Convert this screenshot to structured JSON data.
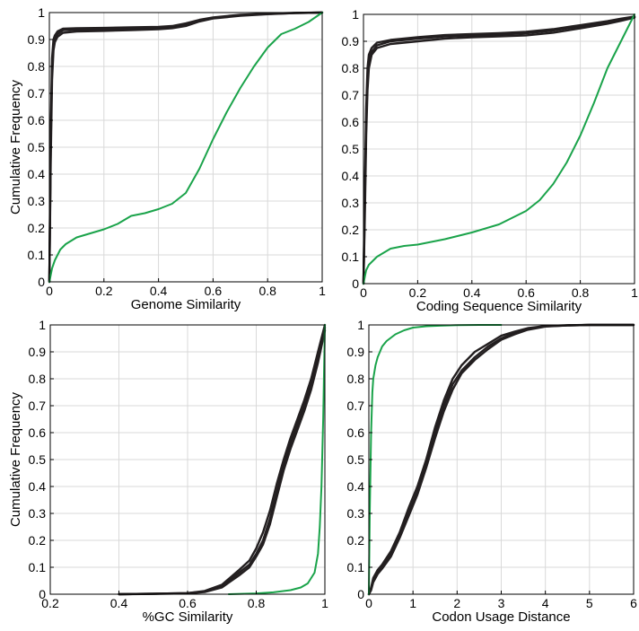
{
  "colors": {
    "black_series": "#231f20",
    "green_series": "#1aa34a",
    "grid": "#d9d9d9"
  },
  "chart_data": [
    {
      "type": "line",
      "xlabel": "Genome Similarity",
      "ylabel": "Cumulative Frequency",
      "xlim": [
        0,
        1
      ],
      "ylim": [
        0,
        1
      ],
      "xticks": [
        "0",
        "0.2",
        "0.4",
        "0.6",
        "0.8",
        "1"
      ],
      "yticks": [
        "0",
        "0.1",
        "0.2",
        "0.3",
        "0.4",
        "0.5",
        "0.6",
        "0.7",
        "0.8",
        "0.9",
        "1"
      ],
      "grid": true,
      "series": [
        {
          "color": "#231f20",
          "x": [
            0,
            0.005,
            0.01,
            0.015,
            0.02,
            0.03,
            0.05,
            0.1,
            0.2,
            0.3,
            0.4,
            0.45,
            0.5,
            0.55,
            0.6,
            0.7,
            0.8,
            0.9,
            1.0
          ],
          "y": [
            0,
            0.5,
            0.8,
            0.88,
            0.9,
            0.92,
            0.935,
            0.937,
            0.937,
            0.94,
            0.942,
            0.945,
            0.955,
            0.97,
            0.98,
            0.99,
            0.995,
            0.998,
            1.0
          ]
        },
        {
          "color": "#231f20",
          "x": [
            0,
            0.005,
            0.01,
            0.015,
            0.02,
            0.03,
            0.05,
            0.1,
            0.2,
            0.3,
            0.4,
            0.45,
            0.5,
            0.55,
            0.6,
            0.7,
            0.8,
            0.9,
            1.0
          ],
          "y": [
            0,
            0.45,
            0.75,
            0.86,
            0.89,
            0.91,
            0.925,
            0.93,
            0.932,
            0.935,
            0.938,
            0.942,
            0.95,
            0.967,
            0.978,
            0.988,
            0.994,
            0.998,
            1.0
          ]
        },
        {
          "color": "#231f20",
          "x": [
            0,
            0.005,
            0.01,
            0.015,
            0.02,
            0.03,
            0.05,
            0.1,
            0.2,
            0.3,
            0.4,
            0.45,
            0.5,
            0.55,
            0.6,
            0.7,
            0.8,
            0.9,
            1.0
          ],
          "y": [
            0,
            0.55,
            0.83,
            0.9,
            0.915,
            0.93,
            0.94,
            0.942,
            0.943,
            0.945,
            0.947,
            0.95,
            0.96,
            0.973,
            0.982,
            0.992,
            0.996,
            0.999,
            1.0
          ]
        },
        {
          "color": "#1aa34a",
          "x": [
            0,
            0.01,
            0.02,
            0.04,
            0.06,
            0.1,
            0.15,
            0.2,
            0.25,
            0.3,
            0.35,
            0.4,
            0.45,
            0.5,
            0.55,
            0.6,
            0.65,
            0.7,
            0.75,
            0.8,
            0.85,
            0.9,
            0.95,
            1.0
          ],
          "y": [
            0,
            0.05,
            0.08,
            0.12,
            0.14,
            0.165,
            0.18,
            0.195,
            0.215,
            0.245,
            0.255,
            0.27,
            0.29,
            0.33,
            0.42,
            0.53,
            0.63,
            0.72,
            0.8,
            0.87,
            0.92,
            0.94,
            0.965,
            1.0
          ]
        }
      ]
    },
    {
      "type": "line",
      "xlabel": "Coding Sequence Similarity",
      "ylabel": "",
      "xlim": [
        0,
        1
      ],
      "ylim": [
        0,
        1
      ],
      "xticks": [
        "0",
        "0.2",
        "0.4",
        "0.6",
        "0.8",
        "1"
      ],
      "yticks": [
        "0",
        "0.1",
        "0.2",
        "0.3",
        "0.4",
        "0.5",
        "0.6",
        "0.7",
        "0.8",
        "0.9",
        "1"
      ],
      "grid": true,
      "series": [
        {
          "color": "#231f20",
          "x": [
            0,
            0.005,
            0.01,
            0.015,
            0.02,
            0.03,
            0.05,
            0.1,
            0.2,
            0.3,
            0.4,
            0.5,
            0.6,
            0.7,
            0.8,
            0.9,
            0.95,
            1.0
          ],
          "y": [
            0,
            0.3,
            0.6,
            0.75,
            0.82,
            0.86,
            0.885,
            0.9,
            0.91,
            0.918,
            0.922,
            0.925,
            0.93,
            0.94,
            0.955,
            0.97,
            0.98,
            0.99
          ]
        },
        {
          "color": "#231f20",
          "x": [
            0,
            0.005,
            0.01,
            0.015,
            0.02,
            0.03,
            0.05,
            0.1,
            0.2,
            0.3,
            0.4,
            0.5,
            0.6,
            0.7,
            0.8,
            0.9,
            0.95,
            1.0
          ],
          "y": [
            0,
            0.35,
            0.65,
            0.8,
            0.85,
            0.875,
            0.895,
            0.905,
            0.915,
            0.923,
            0.927,
            0.93,
            0.935,
            0.945,
            0.96,
            0.975,
            0.984,
            0.992
          ]
        },
        {
          "color": "#231f20",
          "x": [
            0,
            0.005,
            0.01,
            0.015,
            0.02,
            0.03,
            0.05,
            0.1,
            0.2,
            0.3,
            0.4,
            0.5,
            0.6,
            0.7,
            0.8,
            0.9,
            0.95,
            1.0
          ],
          "y": [
            0,
            0.25,
            0.55,
            0.72,
            0.8,
            0.85,
            0.875,
            0.89,
            0.9,
            0.91,
            0.915,
            0.918,
            0.922,
            0.932,
            0.948,
            0.965,
            0.976,
            0.988
          ]
        },
        {
          "color": "#1aa34a",
          "x": [
            0,
            0.01,
            0.02,
            0.05,
            0.1,
            0.15,
            0.2,
            0.3,
            0.4,
            0.5,
            0.55,
            0.6,
            0.65,
            0.7,
            0.75,
            0.8,
            0.85,
            0.9,
            0.95,
            1.0
          ],
          "y": [
            0,
            0.05,
            0.07,
            0.1,
            0.13,
            0.14,
            0.145,
            0.165,
            0.19,
            0.22,
            0.245,
            0.27,
            0.31,
            0.37,
            0.45,
            0.55,
            0.67,
            0.8,
            0.9,
            1.0
          ]
        }
      ]
    },
    {
      "type": "line",
      "xlabel": "%GC Similarity",
      "ylabel": "Cumulative Frequency",
      "xlim": [
        0.2,
        1
      ],
      "ylim": [
        0,
        1
      ],
      "xticks": [
        "0.2",
        "0.4",
        "0.6",
        "0.8",
        "1"
      ],
      "yticks": [
        "0",
        "0.1",
        "0.2",
        "0.3",
        "0.4",
        "0.5",
        "0.6",
        "0.7",
        "0.8",
        "0.9",
        "1"
      ],
      "grid": true,
      "series": [
        {
          "color": "#231f20",
          "x": [
            0.4,
            0.5,
            0.6,
            0.65,
            0.7,
            0.75,
            0.78,
            0.8,
            0.82,
            0.84,
            0.86,
            0.88,
            0.9,
            0.92,
            0.94,
            0.96,
            0.98,
            1.0
          ],
          "y": [
            0,
            0.002,
            0.004,
            0.01,
            0.03,
            0.08,
            0.11,
            0.15,
            0.2,
            0.28,
            0.38,
            0.48,
            0.56,
            0.63,
            0.7,
            0.78,
            0.88,
            0.99
          ]
        },
        {
          "color": "#231f20",
          "x": [
            0.4,
            0.5,
            0.6,
            0.65,
            0.7,
            0.75,
            0.78,
            0.8,
            0.82,
            0.84,
            0.86,
            0.88,
            0.9,
            0.92,
            0.94,
            0.96,
            0.98,
            1.0
          ],
          "y": [
            0,
            0.002,
            0.004,
            0.012,
            0.035,
            0.09,
            0.125,
            0.17,
            0.23,
            0.31,
            0.41,
            0.5,
            0.58,
            0.65,
            0.72,
            0.8,
            0.9,
            1.0
          ]
        },
        {
          "color": "#231f20",
          "x": [
            0.4,
            0.5,
            0.6,
            0.65,
            0.7,
            0.75,
            0.78,
            0.8,
            0.82,
            0.84,
            0.86,
            0.88,
            0.9,
            0.92,
            0.94,
            0.96,
            0.98,
            1.0
          ],
          "y": [
            0,
            0.001,
            0.003,
            0.008,
            0.025,
            0.07,
            0.1,
            0.14,
            0.185,
            0.26,
            0.36,
            0.46,
            0.54,
            0.61,
            0.68,
            0.76,
            0.86,
            0.98
          ]
        },
        {
          "color": "#1aa34a",
          "x": [
            0.72,
            0.8,
            0.85,
            0.9,
            0.93,
            0.95,
            0.97,
            0.98,
            0.985,
            0.99,
            0.995,
            1.0
          ],
          "y": [
            0,
            0.003,
            0.007,
            0.015,
            0.025,
            0.04,
            0.08,
            0.15,
            0.25,
            0.4,
            0.65,
            1.0
          ]
        }
      ]
    },
    {
      "type": "line",
      "xlabel": "Codon Usage Distance",
      "ylabel": "",
      "xlim": [
        0,
        6
      ],
      "ylim": [
        0,
        1
      ],
      "xticks": [
        "0",
        "1",
        "2",
        "3",
        "4",
        "5",
        "6"
      ],
      "yticks": [
        "0",
        "0.1",
        "0.2",
        "0.3",
        "0.4",
        "0.5",
        "0.6",
        "0.7",
        "0.8",
        "0.9",
        "1"
      ],
      "grid": true,
      "series": [
        {
          "color": "#231f20",
          "x": [
            0,
            0.05,
            0.1,
            0.2,
            0.3,
            0.5,
            0.7,
            0.9,
            1.1,
            1.3,
            1.5,
            1.7,
            1.9,
            2.1,
            2.4,
            2.7,
            3.0,
            3.3,
            3.6,
            4.0,
            4.5,
            5.0,
            5.5,
            6.0
          ],
          "y": [
            0,
            0.02,
            0.05,
            0.08,
            0.1,
            0.15,
            0.22,
            0.3,
            0.38,
            0.48,
            0.6,
            0.7,
            0.78,
            0.83,
            0.88,
            0.92,
            0.95,
            0.97,
            0.985,
            0.995,
            0.998,
            1.0,
            1.0,
            1.0
          ]
        },
        {
          "color": "#231f20",
          "x": [
            0,
            0.05,
            0.1,
            0.2,
            0.3,
            0.5,
            0.7,
            0.9,
            1.1,
            1.3,
            1.5,
            1.7,
            1.9,
            2.1,
            2.4,
            2.7,
            3.0,
            3.3,
            3.6,
            4.0,
            4.5,
            5.0,
            5.5,
            6.0
          ],
          "y": [
            0,
            0.025,
            0.06,
            0.09,
            0.11,
            0.16,
            0.23,
            0.32,
            0.4,
            0.5,
            0.62,
            0.72,
            0.8,
            0.85,
            0.9,
            0.93,
            0.96,
            0.975,
            0.988,
            0.996,
            0.999,
            1.0,
            1.0,
            1.0
          ]
        },
        {
          "color": "#231f20",
          "x": [
            0,
            0.05,
            0.1,
            0.2,
            0.3,
            0.5,
            0.7,
            0.9,
            1.1,
            1.3,
            1.5,
            1.7,
            1.9,
            2.1,
            2.4,
            2.7,
            3.0,
            3.3,
            3.6,
            4.0,
            4.5,
            5.0,
            5.5,
            6.0
          ],
          "y": [
            0,
            0.015,
            0.045,
            0.075,
            0.095,
            0.14,
            0.21,
            0.29,
            0.37,
            0.47,
            0.58,
            0.68,
            0.76,
            0.82,
            0.87,
            0.91,
            0.945,
            0.965,
            0.982,
            0.994,
            0.998,
            1.0,
            1.0,
            1.0
          ]
        },
        {
          "color": "#1aa34a",
          "x": [
            0,
            0.02,
            0.05,
            0.08,
            0.1,
            0.15,
            0.2,
            0.3,
            0.4,
            0.6,
            0.8,
            1.0,
            1.3,
            1.6,
            2.0,
            2.5,
            3.0
          ],
          "y": [
            0,
            0.3,
            0.6,
            0.75,
            0.8,
            0.85,
            0.88,
            0.92,
            0.94,
            0.965,
            0.98,
            0.99,
            0.995,
            0.997,
            0.999,
            1.0,
            1.0
          ]
        }
      ]
    }
  ]
}
